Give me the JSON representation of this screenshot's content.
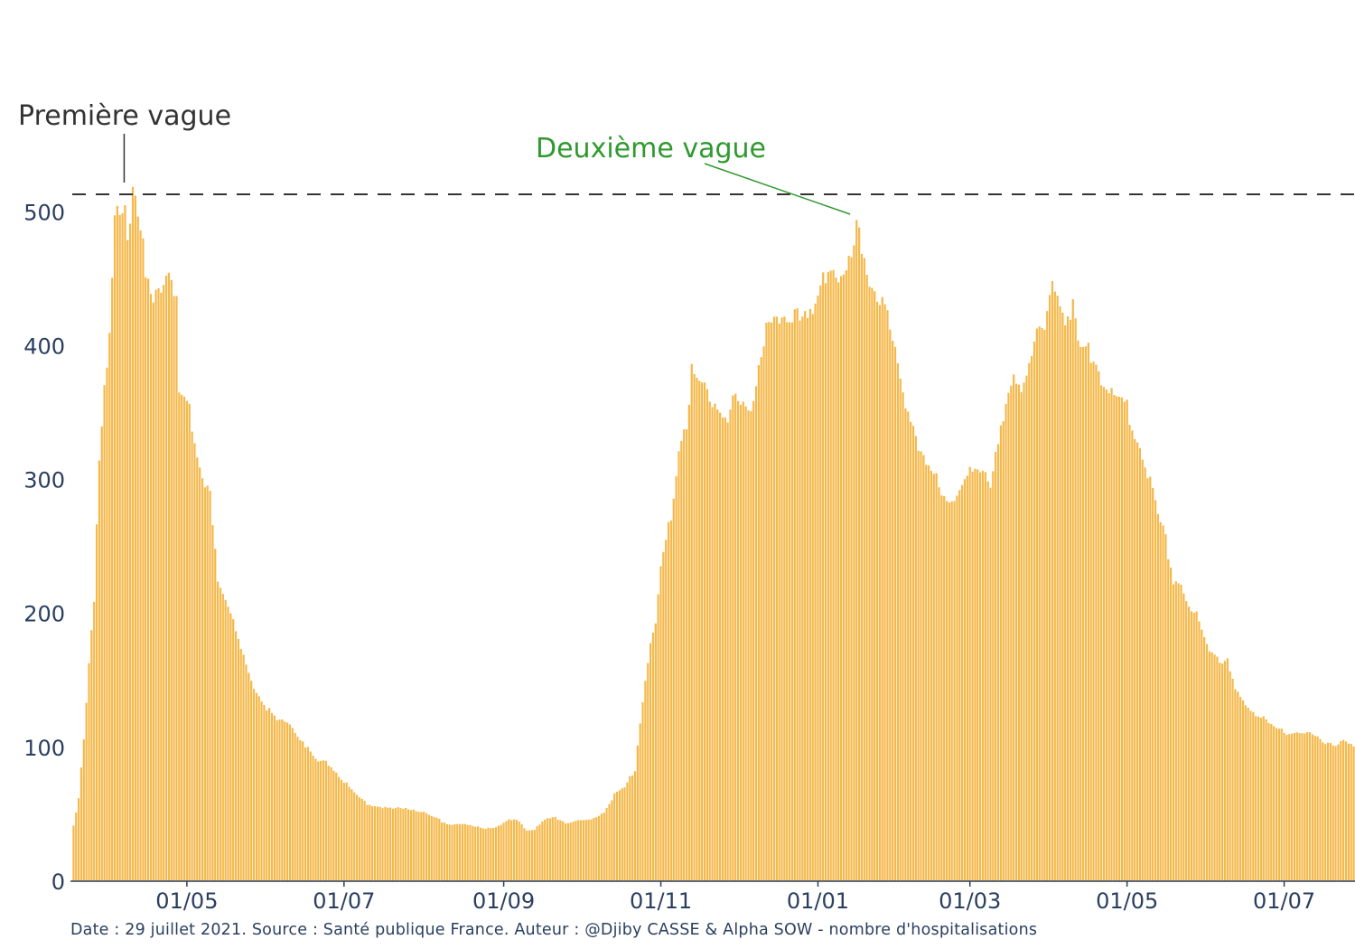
{
  "chart_data": {
    "type": "bar",
    "bar_color": "#f5b84a",
    "bar_edge_color": "#ffffff",
    "axis_color": "#2a3f5f",
    "x_start": "2020-03-18",
    "x_end": "2021-07-28",
    "x_ticks": [
      {
        "date": "2020-05-01",
        "label": "01/05"
      },
      {
        "date": "2020-07-01",
        "label": "01/07"
      },
      {
        "date": "2020-09-01",
        "label": "01/09"
      },
      {
        "date": "2020-11-01",
        "label": "01/11"
      },
      {
        "date": "2021-01-01",
        "label": "01/01"
      },
      {
        "date": "2021-03-01",
        "label": "01/03"
      },
      {
        "date": "2021-05-01",
        "label": "01/05"
      },
      {
        "date": "2021-07-01",
        "label": "01/07"
      }
    ],
    "y_ticks": [
      0,
      100,
      200,
      300,
      400,
      500
    ],
    "ylim": [
      0,
      550
    ],
    "reference_line": {
      "y": 513,
      "style": "dashed",
      "color": "#333333"
    },
    "annotations": [
      {
        "text": "Première vague",
        "date": "2020-04-07",
        "y": 513,
        "color": "#333333"
      },
      {
        "text": "Deuxième vague",
        "date": "2021-01-17",
        "y": 490,
        "color": "#2e9a2e"
      }
    ],
    "keyframes": [
      [
        "2020-03-18",
        42
      ],
      [
        "2020-03-20",
        62
      ],
      [
        "2020-03-22",
        105
      ],
      [
        "2020-03-24",
        160
      ],
      [
        "2020-03-26",
        208
      ],
      [
        "2020-03-28",
        315
      ],
      [
        "2020-03-30",
        372
      ],
      [
        "2020-04-01",
        410
      ],
      [
        "2020-04-03",
        500
      ],
      [
        "2020-04-05",
        490
      ],
      [
        "2020-04-07",
        505
      ],
      [
        "2020-04-08",
        470
      ],
      [
        "2020-04-10",
        510
      ],
      [
        "2020-04-12",
        505
      ],
      [
        "2020-04-14",
        485
      ],
      [
        "2020-04-15",
        460
      ],
      [
        "2020-04-18",
        440
      ],
      [
        "2020-04-21",
        435
      ],
      [
        "2020-04-24",
        450
      ],
      [
        "2020-04-27",
        440
      ],
      [
        "2020-04-28",
        370
      ],
      [
        "2020-05-02",
        362
      ],
      [
        "2020-05-04",
        322
      ],
      [
        "2020-05-07",
        296
      ],
      [
        "2020-05-10",
        290
      ],
      [
        "2020-05-13",
        228
      ],
      [
        "2020-05-17",
        208
      ],
      [
        "2020-05-20",
        185
      ],
      [
        "2020-05-24",
        160
      ],
      [
        "2020-05-28",
        142
      ],
      [
        "2020-06-01",
        130
      ],
      [
        "2020-06-05",
        120
      ],
      [
        "2020-06-10",
        118
      ],
      [
        "2020-06-15",
        105
      ],
      [
        "2020-06-20",
        90
      ],
      [
        "2020-06-25",
        88
      ],
      [
        "2020-06-30",
        77
      ],
      [
        "2020-07-05",
        66
      ],
      [
        "2020-07-10",
        58
      ],
      [
        "2020-07-15",
        56
      ],
      [
        "2020-07-20",
        54
      ],
      [
        "2020-07-25",
        55
      ],
      [
        "2020-07-30",
        53
      ],
      [
        "2020-08-05",
        48
      ],
      [
        "2020-08-10",
        43
      ],
      [
        "2020-08-15",
        43
      ],
      [
        "2020-08-20",
        41
      ],
      [
        "2020-08-25",
        40
      ],
      [
        "2020-08-30",
        41
      ],
      [
        "2020-09-03",
        46
      ],
      [
        "2020-09-07",
        45
      ],
      [
        "2020-09-10",
        38
      ],
      [
        "2020-09-13",
        39
      ],
      [
        "2020-09-17",
        46
      ],
      [
        "2020-09-21",
        48
      ],
      [
        "2020-09-25",
        44
      ],
      [
        "2020-09-30",
        45
      ],
      [
        "2020-10-05",
        46
      ],
      [
        "2020-10-10",
        52
      ],
      [
        "2020-10-14",
        65
      ],
      [
        "2020-10-18",
        70
      ],
      [
        "2020-10-22",
        84
      ],
      [
        "2020-10-24",
        120
      ],
      [
        "2020-10-26",
        150
      ],
      [
        "2020-10-28",
        180
      ],
      [
        "2020-10-30",
        190
      ],
      [
        "2020-11-01",
        232
      ],
      [
        "2020-11-03",
        255
      ],
      [
        "2020-11-05",
        272
      ],
      [
        "2020-11-07",
        308
      ],
      [
        "2020-11-09",
        335
      ],
      [
        "2020-11-11",
        343
      ],
      [
        "2020-11-13",
        380
      ],
      [
        "2020-11-15",
        374
      ],
      [
        "2020-11-18",
        370
      ],
      [
        "2020-11-21",
        358
      ],
      [
        "2020-11-24",
        355
      ],
      [
        "2020-11-27",
        345
      ],
      [
        "2020-11-30",
        362
      ],
      [
        "2020-12-03",
        352
      ],
      [
        "2020-12-06",
        355
      ],
      [
        "2020-12-09",
        388
      ],
      [
        "2020-12-12",
        410
      ],
      [
        "2020-12-15",
        420
      ],
      [
        "2020-12-18",
        415
      ],
      [
        "2020-12-21",
        422
      ],
      [
        "2020-12-24",
        430
      ],
      [
        "2020-12-27",
        418
      ],
      [
        "2020-12-30",
        422
      ],
      [
        "2021-01-02",
        440
      ],
      [
        "2021-01-05",
        462
      ],
      [
        "2021-01-08",
        458
      ],
      [
        "2021-01-11",
        453
      ],
      [
        "2021-01-14",
        462
      ],
      [
        "2021-01-16",
        488
      ],
      [
        "2021-01-18",
        478
      ],
      [
        "2021-01-20",
        455
      ],
      [
        "2021-01-23",
        442
      ],
      [
        "2021-01-26",
        433
      ],
      [
        "2021-01-29",
        412
      ],
      [
        "2021-02-01",
        385
      ],
      [
        "2021-02-04",
        357
      ],
      [
        "2021-02-07",
        343
      ],
      [
        "2021-02-10",
        318
      ],
      [
        "2021-02-13",
        305
      ],
      [
        "2021-02-16",
        301
      ],
      [
        "2021-02-19",
        288
      ],
      [
        "2021-02-22",
        286
      ],
      [
        "2021-02-25",
        292
      ],
      [
        "2021-02-28",
        302
      ],
      [
        "2021-03-03",
        308
      ],
      [
        "2021-03-06",
        312
      ],
      [
        "2021-03-09",
        298
      ],
      [
        "2021-03-12",
        326
      ],
      [
        "2021-03-15",
        352
      ],
      [
        "2021-03-18",
        372
      ],
      [
        "2021-03-21",
        372
      ],
      [
        "2021-03-24",
        392
      ],
      [
        "2021-03-27",
        405
      ],
      [
        "2021-03-30",
        410
      ],
      [
        "2021-04-02",
        440
      ],
      [
        "2021-04-04",
        445
      ],
      [
        "2021-04-07",
        422
      ],
      [
        "2021-04-10",
        428
      ],
      [
        "2021-04-13",
        392
      ],
      [
        "2021-04-16",
        396
      ],
      [
        "2021-04-19",
        392
      ],
      [
        "2021-04-22",
        370
      ],
      [
        "2021-04-25",
        366
      ],
      [
        "2021-04-28",
        356
      ],
      [
        "2021-05-01",
        354
      ],
      [
        "2021-05-04",
        333
      ],
      [
        "2021-05-07",
        320
      ],
      [
        "2021-05-10",
        300
      ],
      [
        "2021-05-13",
        273
      ],
      [
        "2021-05-16",
        255
      ],
      [
        "2021-05-19",
        226
      ],
      [
        "2021-05-22",
        224
      ],
      [
        "2021-05-25",
        203
      ],
      [
        "2021-05-28",
        198
      ],
      [
        "2021-05-31",
        182
      ],
      [
        "2021-06-03",
        172
      ],
      [
        "2021-06-06",
        166
      ],
      [
        "2021-06-09",
        164
      ],
      [
        "2021-06-12",
        142
      ],
      [
        "2021-06-15",
        135
      ],
      [
        "2021-06-18",
        128
      ],
      [
        "2021-06-21",
        125
      ],
      [
        "2021-06-24",
        120
      ],
      [
        "2021-06-27",
        114
      ],
      [
        "2021-06-30",
        113
      ],
      [
        "2021-07-03",
        111
      ],
      [
        "2021-07-06",
        112
      ],
      [
        "2021-07-09",
        110
      ],
      [
        "2021-07-12",
        109
      ],
      [
        "2021-07-15",
        106
      ],
      [
        "2021-07-18",
        104
      ],
      [
        "2021-07-21",
        103
      ],
      [
        "2021-07-24",
        105
      ],
      [
        "2021-07-28",
        100
      ]
    ]
  },
  "source_text": "Date : 29 juillet 2021. Source : Santé publique France. Auteur : @Djiby CASSE & Alpha SOW - nombre d'hospitalisations"
}
